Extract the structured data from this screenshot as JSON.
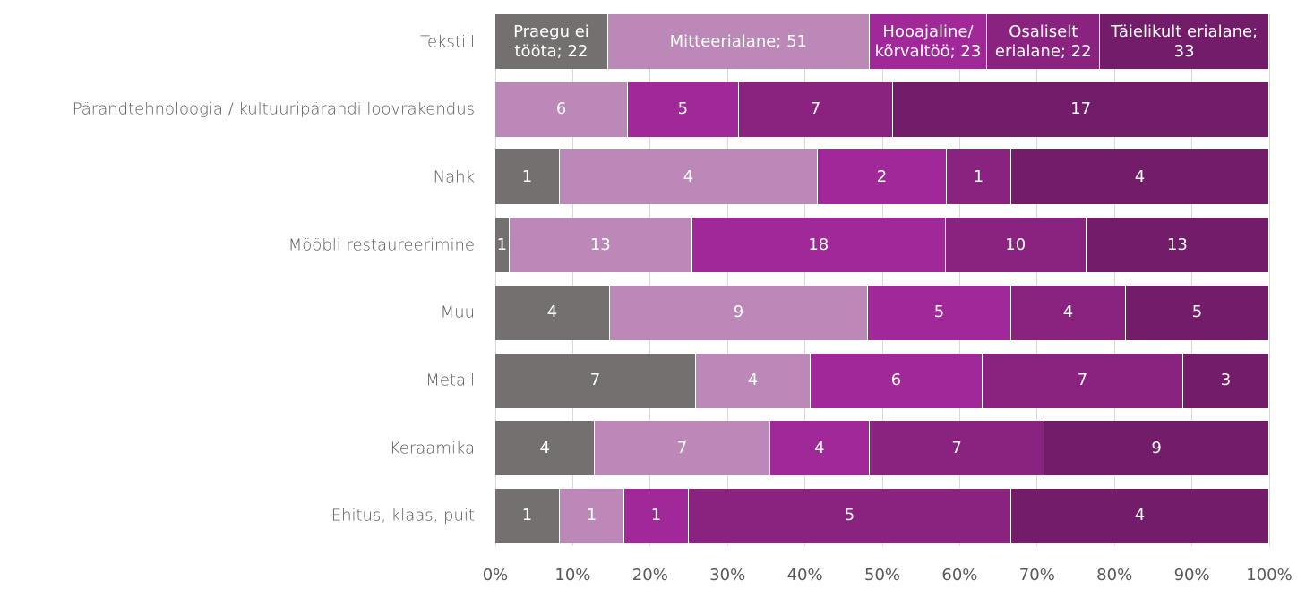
{
  "chart_data": {
    "type": "bar",
    "orientation": "horizontal",
    "stacking": "percent",
    "categories": [
      "Tekstiil",
      "Pärandtehnoloogia / kultuuripärandi loovrakendus",
      "Nahk",
      "Mööbli restaureerimine",
      "Muu",
      "Metall",
      "Keraamika",
      "Ehitus, klaas, puit"
    ],
    "series": [
      {
        "color": "#747070",
        "values": [
          22,
          null,
          1,
          1,
          4,
          7,
          4,
          1
        ],
        "value_labels": [
          "Praegu ei tööta; 22",
          null,
          null,
          null,
          null,
          null,
          null,
          null
        ]
      },
      {
        "color": "#bc88b8",
        "values": [
          51,
          6,
          4,
          13,
          9,
          4,
          7,
          1
        ],
        "value_labels": [
          "Mitteerialane; 51",
          null,
          null,
          null,
          null,
          null,
          null,
          null
        ]
      },
      {
        "color": "#a02898",
        "values": [
          23,
          5,
          2,
          18,
          5,
          6,
          4,
          1
        ],
        "value_labels": [
          "Hooajaline/ kõrvaltöö; 23",
          null,
          null,
          null,
          null,
          null,
          null,
          null
        ]
      },
      {
        "color": "#8a2280",
        "values": [
          22,
          7,
          1,
          10,
          4,
          7,
          7,
          5
        ],
        "value_labels": [
          "Osaliselt erialane; 22",
          null,
          null,
          null,
          null,
          null,
          null,
          null
        ]
      },
      {
        "color": "#721c6a",
        "values": [
          33,
          17,
          4,
          13,
          5,
          3,
          9,
          4
        ],
        "value_labels": [
          "Täielikult erialane; 33",
          null,
          null,
          null,
          null,
          null,
          null,
          null
        ]
      }
    ],
    "xlim": [
      0,
      100
    ],
    "xticks": [
      {
        "value": 0,
        "label": "0%"
      },
      {
        "value": 10,
        "label": "10%"
      },
      {
        "value": 20,
        "label": "20%"
      },
      {
        "value": 30,
        "label": "30%"
      },
      {
        "value": 40,
        "label": "40%"
      },
      {
        "value": 50,
        "label": "50%"
      },
      {
        "value": 60,
        "label": "60%"
      },
      {
        "value": 70,
        "label": "70%"
      },
      {
        "value": 80,
        "label": "80%"
      },
      {
        "value": 90,
        "label": "90%"
      },
      {
        "value": 100,
        "label": "100%"
      }
    ],
    "grid": true
  }
}
